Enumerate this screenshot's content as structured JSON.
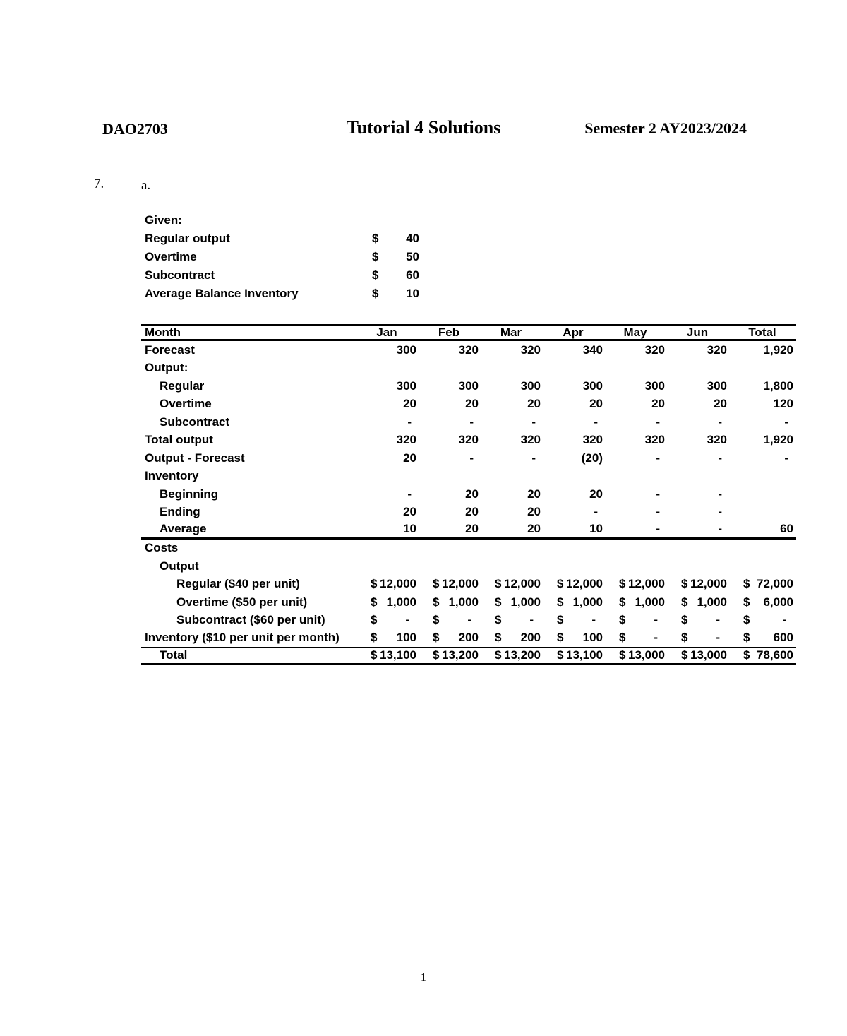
{
  "header": {
    "course_code": "DAO2703",
    "title": "Tutorial 4 Solutions",
    "semester": "Semester 2 AY2023/2024"
  },
  "question": {
    "number": "7.",
    "part": "a."
  },
  "given": {
    "heading": "Given:",
    "rows": [
      {
        "label": "Regular output",
        "currency": "$",
        "value": "40"
      },
      {
        "label": "Overtime",
        "currency": "$",
        "value": "50"
      },
      {
        "label": "Subcontract",
        "currency": "$",
        "value": "60"
      },
      {
        "label": "Average Balance Inventory",
        "currency": "$",
        "value": "10"
      }
    ]
  },
  "table": {
    "header": {
      "month": "Month",
      "columns": [
        "Jan",
        "Feb",
        "Mar",
        "Apr",
        "May",
        "Jun",
        "Total"
      ]
    },
    "rows": [
      {
        "label": "Forecast",
        "indent": 0,
        "dollar": false,
        "border_bottom": "",
        "values": [
          "300",
          "320",
          "320",
          "340",
          "320",
          "320",
          "1,920"
        ]
      },
      {
        "label": "Output:",
        "indent": 0,
        "dollar": false,
        "border_bottom": "",
        "values": [
          "",
          "",
          "",
          "",
          "",
          "",
          ""
        ]
      },
      {
        "label": "Regular",
        "indent": 1,
        "dollar": false,
        "border_bottom": "",
        "values": [
          "300",
          "300",
          "300",
          "300",
          "300",
          "300",
          "1,800"
        ]
      },
      {
        "label": "Overtime",
        "indent": 1,
        "dollar": false,
        "border_bottom": "",
        "values": [
          "20",
          "20",
          "20",
          "20",
          "20",
          "20",
          "120"
        ]
      },
      {
        "label": "Subcontract",
        "indent": 1,
        "dollar": false,
        "border_bottom": "",
        "values": [
          "-",
          "-",
          "-",
          "-",
          "-",
          "-",
          "-"
        ]
      },
      {
        "label": "Total output",
        "indent": 0,
        "dollar": false,
        "border_bottom": "",
        "values": [
          "320",
          "320",
          "320",
          "320",
          "320",
          "320",
          "1,920"
        ]
      },
      {
        "label": "Output - Forecast",
        "indent": 0,
        "dollar": false,
        "border_bottom": "",
        "values": [
          "20",
          "-",
          "-",
          "(20)",
          "-",
          "-",
          "-"
        ]
      },
      {
        "label": "Inventory",
        "indent": 0,
        "dollar": false,
        "border_bottom": "",
        "values": [
          "",
          "",
          "",
          "",
          "",
          "",
          ""
        ]
      },
      {
        "label": "Beginning",
        "indent": 1,
        "dollar": false,
        "border_bottom": "",
        "values": [
          "-",
          "20",
          "20",
          "20",
          "-",
          "-",
          ""
        ]
      },
      {
        "label": "Ending",
        "indent": 1,
        "dollar": false,
        "border_bottom": "",
        "values": [
          "20",
          "20",
          "20",
          "-",
          "-",
          "-",
          ""
        ]
      },
      {
        "label": "Average",
        "indent": 1,
        "dollar": false,
        "border_bottom": "thick",
        "values": [
          "10",
          "20",
          "20",
          "10",
          "-",
          "-",
          "60"
        ]
      },
      {
        "label": "Costs",
        "indent": 0,
        "dollar": false,
        "border_bottom": "",
        "values": [
          "",
          "",
          "",
          "",
          "",
          "",
          ""
        ]
      },
      {
        "label": "Output",
        "indent": 1,
        "dollar": false,
        "border_bottom": "",
        "values": [
          "",
          "",
          "",
          "",
          "",
          "",
          ""
        ]
      },
      {
        "label": "Regular ($40 per unit)",
        "indent": 2,
        "dollar": true,
        "border_bottom": "",
        "values": [
          "12,000",
          "12,000",
          "12,000",
          "12,000",
          "12,000",
          "12,000",
          "72,000"
        ]
      },
      {
        "label": "Overtime ($50 per unit)",
        "indent": 2,
        "dollar": true,
        "border_bottom": "",
        "values": [
          "1,000",
          "1,000",
          "1,000",
          "1,000",
          "1,000",
          "1,000",
          "6,000"
        ]
      },
      {
        "label": "Subcontract ($60 per unit)",
        "indent": 2,
        "dollar": true,
        "border_bottom": "",
        "values": [
          "-",
          "-",
          "-",
          "-",
          "-",
          "-",
          "-"
        ]
      },
      {
        "label": "Inventory ($10 per unit per month)",
        "indent": 0,
        "dollar": true,
        "border_bottom": "thin",
        "values": [
          "100",
          "200",
          "200",
          "100",
          "-",
          "-",
          "600"
        ]
      },
      {
        "label": "Total",
        "indent": 1,
        "dollar": true,
        "border_bottom": "heavy",
        "values": [
          "13,100",
          "13,200",
          "13,200",
          "13,100",
          "13,000",
          "13,000",
          "78,600"
        ]
      }
    ]
  },
  "page": {
    "number": "1"
  },
  "colors": {
    "text": "#000000",
    "background": "#ffffff"
  }
}
